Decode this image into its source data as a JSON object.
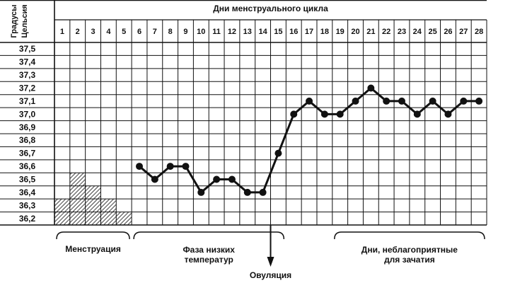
{
  "chart_data": {
    "type": "line",
    "title": "Дни менструального цикла",
    "ylabel_lines": [
      "Градусы",
      "Цельсия"
    ],
    "x": [
      1,
      2,
      3,
      4,
      5,
      6,
      7,
      8,
      9,
      10,
      11,
      12,
      13,
      14,
      15,
      16,
      17,
      18,
      19,
      20,
      21,
      22,
      23,
      24,
      25,
      26,
      27,
      28
    ],
    "x_labels": [
      "1",
      "2",
      "3",
      "4",
      "5",
      "6",
      "7",
      "8",
      "9",
      "10",
      "11",
      "12",
      "13",
      "14",
      "15",
      "16",
      "17",
      "18",
      "19",
      "20",
      "21",
      "22",
      "23",
      "24",
      "25",
      "26",
      "27",
      "28"
    ],
    "y_ticks": [
      "37,5",
      "37,4",
      "37,3",
      "37,2",
      "37,1",
      "37,0",
      "36,9",
      "36,8",
      "36,7",
      "36,6",
      "36,5",
      "36,4",
      "36,3",
      "36,2"
    ],
    "ylim": [
      36.15,
      37.55
    ],
    "series": [
      {
        "x": [
          6,
          7,
          8,
          9,
          10,
          11,
          12,
          13,
          14,
          15,
          16,
          17,
          18,
          19,
          20,
          21,
          22,
          23,
          24,
          25,
          26,
          27,
          28
        ],
        "values": [
          36.6,
          36.5,
          36.6,
          36.6,
          36.4,
          36.5,
          36.5,
          36.4,
          36.4,
          36.7,
          37.0,
          37.1,
          37.0,
          37.0,
          37.1,
          37.2,
          37.1,
          37.1,
          37.0,
          37.1,
          37.0,
          37.1,
          37.1
        ]
      }
    ],
    "menstruation_bars": [
      {
        "day": 1,
        "value": 36.3
      },
      {
        "day": 2,
        "value": 36.5
      },
      {
        "day": 3,
        "value": 36.4
      },
      {
        "day": 4,
        "value": 36.3
      },
      {
        "day": 5,
        "value": 36.2
      }
    ],
    "grid": true,
    "annotations": {
      "menstruation": {
        "label": "Менструация",
        "from_day": 1,
        "to_day": 5
      },
      "low_phase": {
        "label_lines": [
          "Фаза низких",
          "температур"
        ],
        "from_day": 6,
        "to_day": 15
      },
      "ovulation": {
        "label": "Овуляция",
        "day": 14.5
      },
      "infertile": {
        "label_lines": [
          "Дни, неблагоприятные",
          "для зачатия"
        ],
        "from_day": 19,
        "to_day": 28
      }
    }
  }
}
